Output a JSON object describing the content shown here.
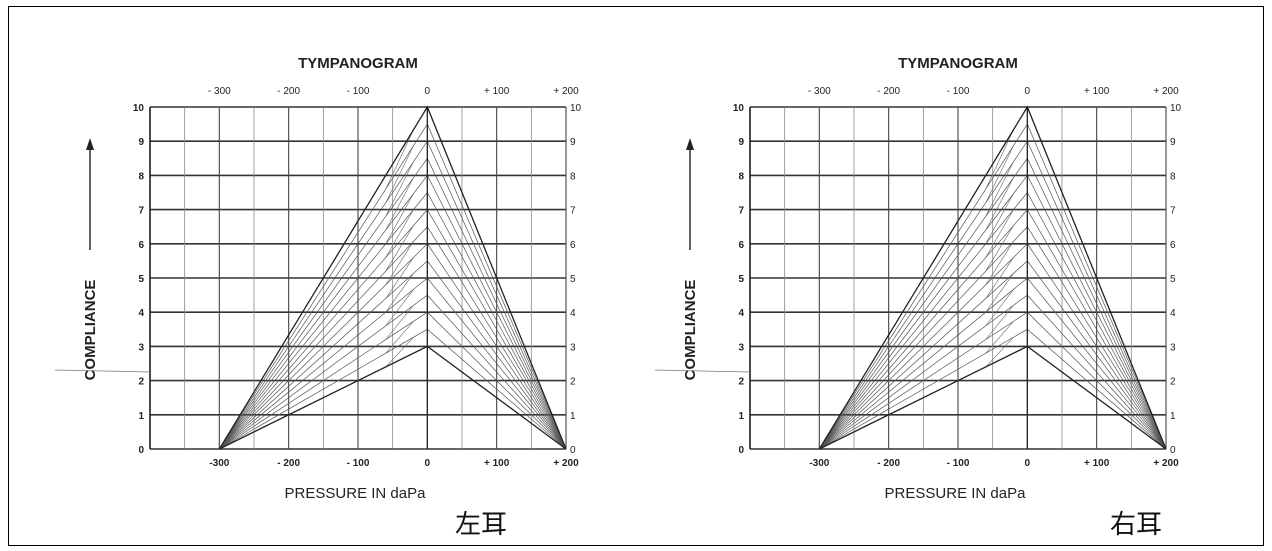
{
  "chart_data": [
    {
      "type": "line",
      "title": "TYMPANOGRAM",
      "xlabel": "PRESSURE IN daPa",
      "ylabel": "COMPLIANCE",
      "caption": "左耳",
      "x_top_ticks": [
        "- 300",
        "- 200",
        "- 100",
        "0",
        "+ 100",
        "+ 200"
      ],
      "x_bottom_ticks": [
        "-300",
        "- 200",
        "- 100",
        "0",
        "+ 100",
        "+ 200"
      ],
      "x_tick_values": [
        -300,
        -200,
        -100,
        0,
        100,
        200
      ],
      "y_ticks": [
        0,
        1,
        2,
        3,
        4,
        5,
        6,
        7,
        8,
        9,
        10
      ],
      "xlim": [
        -400,
        200
      ],
      "ylim": [
        0,
        10
      ],
      "grid": true,
      "series": [
        {
          "x": [
            -300,
            0,
            200
          ],
          "y": [
            0,
            10,
            0
          ]
        },
        {
          "x": [
            -300,
            0,
            200
          ],
          "y": [
            0,
            3,
            0
          ]
        }
      ],
      "hatch_peaks": [
        3,
        3.5,
        4,
        4.5,
        5,
        5.5,
        6,
        6.5,
        7,
        7.5,
        8,
        8.5,
        9,
        9.5,
        10
      ]
    },
    {
      "type": "line",
      "title": "TYMPANOGRAM",
      "xlabel": "PRESSURE IN daPa",
      "ylabel": "COMPLIANCE",
      "caption": "右耳",
      "x_top_ticks": [
        "- 300",
        "- 200",
        "- 100",
        "0",
        "+ 100",
        "+ 200"
      ],
      "x_bottom_ticks": [
        "-300",
        "- 200",
        "- 100",
        "0",
        "+ 100",
        "+ 200"
      ],
      "x_tick_values": [
        -300,
        -200,
        -100,
        0,
        100,
        200
      ],
      "y_ticks": [
        0,
        1,
        2,
        3,
        4,
        5,
        6,
        7,
        8,
        9,
        10
      ],
      "xlim": [
        -400,
        200
      ],
      "ylim": [
        0,
        10
      ],
      "grid": true,
      "series": [
        {
          "x": [
            -300,
            0,
            200
          ],
          "y": [
            0,
            10,
            0
          ]
        },
        {
          "x": [
            -300,
            0,
            200
          ],
          "y": [
            0,
            3,
            0
          ]
        }
      ],
      "hatch_peaks": [
        3,
        3.5,
        4,
        4.5,
        5,
        5.5,
        6,
        6.5,
        7,
        7.5,
        8,
        8.5,
        9,
        9.5,
        10
      ]
    }
  ]
}
